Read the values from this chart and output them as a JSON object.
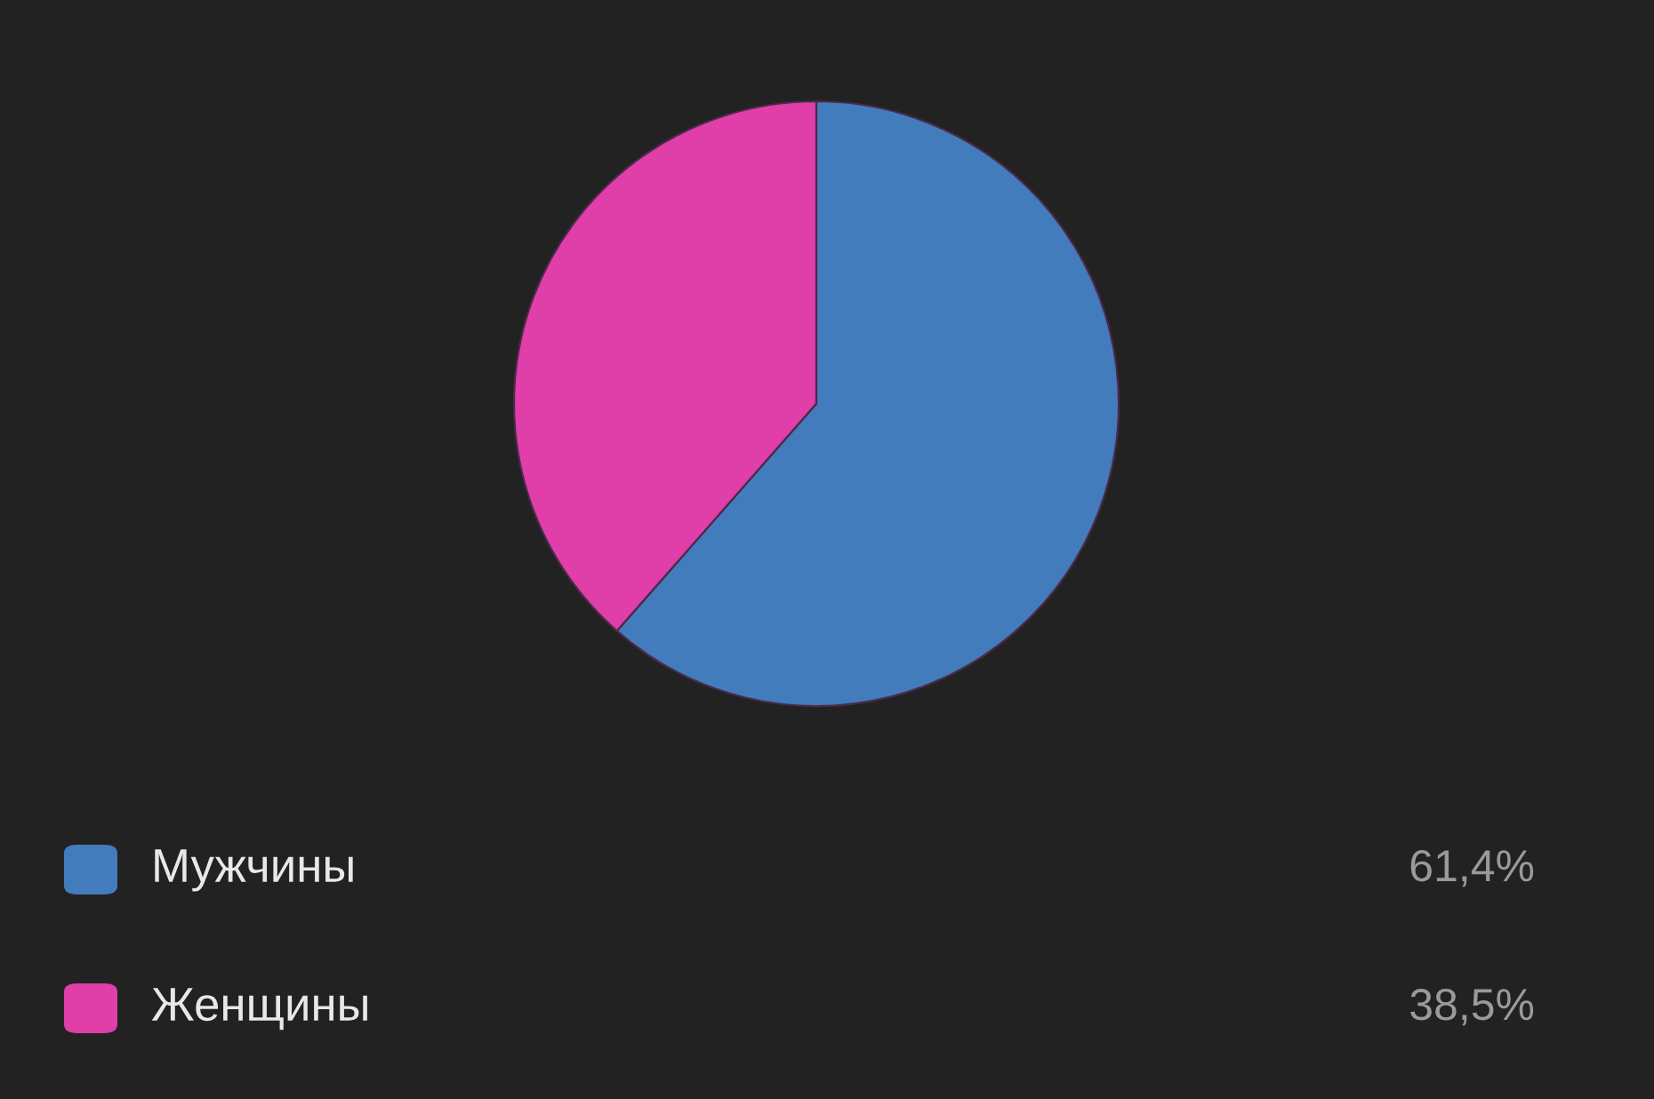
{
  "chart_data": {
    "type": "pie",
    "categories": [
      "Мужчины",
      "Женщины"
    ],
    "values": [
      61.4,
      38.5
    ],
    "colors": [
      "#437cbd",
      "#e03ea9"
    ],
    "value_labels": [
      "61,4%",
      "38,5%"
    ],
    "legend": "bottom"
  }
}
